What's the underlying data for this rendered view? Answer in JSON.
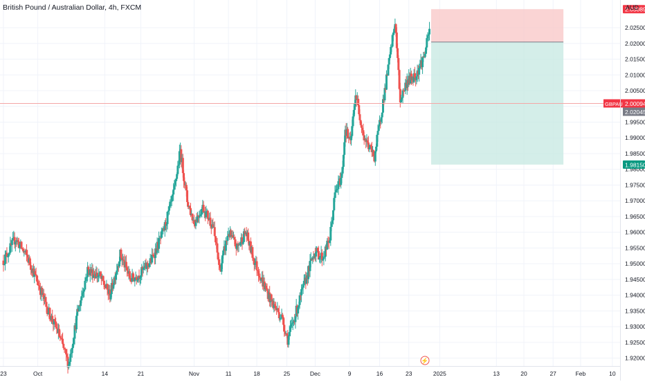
{
  "header": {
    "title": "British Pound / Australian Dollar, 4h, FXCM",
    "currency": "AUD"
  },
  "colors": {
    "up": "#26a69a",
    "down": "#ef5350",
    "grid": "#f0f3fa",
    "axis_text": "#131722",
    "stop_zone": "#f9c9c9",
    "target_zone": "#c9eae3",
    "price_line": "#f4a6a6"
  },
  "chart_data": {
    "type": "candlestick",
    "symbol_badge": "GBPAUD",
    "x_ticks": [
      {
        "label": "23",
        "t": 0
      },
      {
        "label": "Oct",
        "t": 40
      },
      {
        "label": "14",
        "t": 118
      },
      {
        "label": "21",
        "t": 160
      },
      {
        "label": "Nov",
        "t": 222
      },
      {
        "label": "11",
        "t": 262
      },
      {
        "label": "18",
        "t": 295
      },
      {
        "label": "25",
        "t": 330
      },
      {
        "label": "Dec",
        "t": 363
      },
      {
        "label": "9",
        "t": 403
      },
      {
        "label": "16",
        "t": 438
      },
      {
        "label": "23",
        "t": 472
      },
      {
        "label": "2025",
        "t": 508
      },
      {
        "label": "13",
        "t": 574
      },
      {
        "label": "20",
        "t": 606
      },
      {
        "label": "27",
        "t": 640
      },
      {
        "label": "Feb",
        "t": 672
      },
      {
        "label": "10",
        "t": 709
      }
    ],
    "y_ticks": [
      "2.02500",
      "2.02000",
      "2.01500",
      "2.01000",
      "2.00500",
      "2.00000",
      "1.99500",
      "1.99000",
      "1.98500",
      "1.98000",
      "1.97500",
      "1.97000",
      "1.96500",
      "1.96000",
      "1.95500",
      "1.95000",
      "1.94500",
      "1.94000",
      "1.93500",
      "1.93000",
      "1.92500",
      "1.92000"
    ],
    "ylim": [
      1.9175,
      2.0338
    ],
    "xlim": [
      -4,
      718
    ],
    "price_labels": {
      "stop": "2.03089",
      "current": "2.00094",
      "current_alt": "2.02045",
      "target": "1.98150"
    },
    "position": {
      "entry": 2.02045,
      "stop": 2.03089,
      "target": 1.9815,
      "t_start": 498,
      "t_end": 652
    },
    "anchors": [
      [
        0,
        1.951
      ],
      [
        14,
        1.958
      ],
      [
        28,
        1.952
      ],
      [
        40,
        1.944
      ],
      [
        52,
        1.935
      ],
      [
        64,
        1.928
      ],
      [
        76,
        1.918
      ],
      [
        86,
        1.934
      ],
      [
        98,
        1.948
      ],
      [
        112,
        1.946
      ],
      [
        124,
        1.94
      ],
      [
        136,
        1.953
      ],
      [
        148,
        1.945
      ],
      [
        160,
        1.947
      ],
      [
        172,
        1.951
      ],
      [
        186,
        1.96
      ],
      [
        198,
        1.972
      ],
      [
        206,
        1.986
      ],
      [
        214,
        1.97
      ],
      [
        222,
        1.963
      ],
      [
        232,
        1.968
      ],
      [
        244,
        1.962
      ],
      [
        252,
        1.948
      ],
      [
        262,
        1.96
      ],
      [
        272,
        1.955
      ],
      [
        282,
        1.96
      ],
      [
        292,
        1.951
      ],
      [
        302,
        1.944
      ],
      [
        312,
        1.938
      ],
      [
        324,
        1.933
      ],
      [
        331,
        1.926
      ],
      [
        340,
        1.934
      ],
      [
        352,
        1.945
      ],
      [
        362,
        1.954
      ],
      [
        372,
        1.952
      ],
      [
        380,
        1.958
      ],
      [
        386,
        1.972
      ],
      [
        394,
        1.978
      ],
      [
        398,
        1.993
      ],
      [
        404,
        1.988
      ],
      [
        410,
        2.004
      ],
      [
        420,
        1.99
      ],
      [
        432,
        1.984
      ],
      [
        440,
        1.998
      ],
      [
        448,
        2.012
      ],
      [
        456,
        2.027
      ],
      [
        462,
        2.002
      ],
      [
        470,
        2.008
      ],
      [
        480,
        2.01
      ],
      [
        490,
        2.016
      ],
      [
        496,
        2.024
      ]
    ]
  }
}
